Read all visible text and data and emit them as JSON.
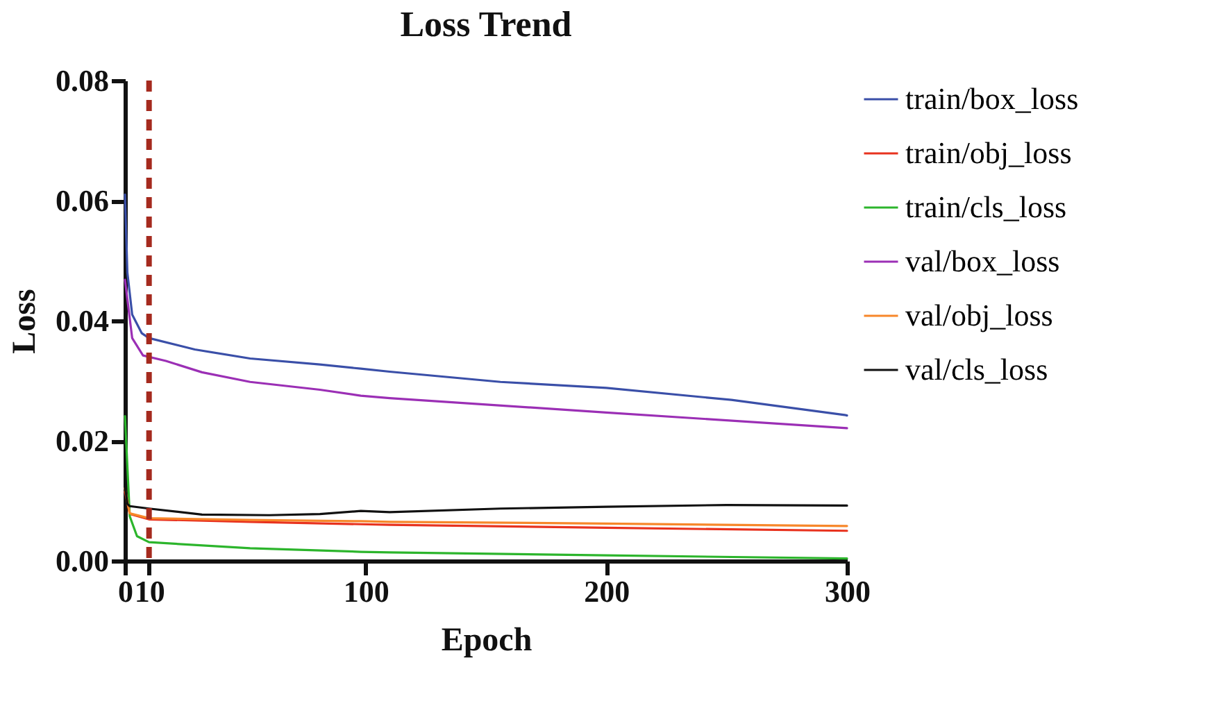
{
  "chart_data": {
    "type": "line",
    "title": "Loss Trend",
    "xlabel": "Epoch",
    "ylabel": "Loss",
    "xlim": [
      0,
      300
    ],
    "xticks": [
      0,
      10,
      100,
      200,
      300
    ],
    "ylim": [
      0,
      0.08
    ],
    "yticks": [
      {
        "value": 0,
        "label": "0.00"
      },
      {
        "value": 0.02,
        "label": "0.02"
      },
      {
        "value": 0.04,
        "label": "0.04"
      },
      {
        "value": 0.06,
        "label": "0.06"
      },
      {
        "value": 0.08,
        "label": "0.08"
      }
    ],
    "grid": false,
    "legend": "right",
    "marker": "none",
    "line_style": "solid",
    "ref_lines": [
      {
        "axis": "x",
        "value": 10,
        "color": "#a52a1e",
        "line_style": "dashed"
      }
    ],
    "series": [
      {
        "name": "train/box_loss",
        "color": "#3a4fa8",
        "x": [
          0,
          1,
          3,
          7,
          10,
          29,
          52,
          81,
          98,
          110,
          156,
          200,
          252,
          299,
          300
        ],
        "values": [
          0.061,
          0.048,
          0.041,
          0.0379,
          0.0371,
          0.0352,
          0.0337,
          0.0327,
          0.032,
          0.0315,
          0.0298,
          0.0288,
          0.0268,
          0.0243,
          0.0242
        ]
      },
      {
        "name": "train/obj_loss",
        "color": "#e8321e",
        "x": [
          0,
          2,
          10,
          52,
          98,
          110,
          200,
          300
        ],
        "values": [
          0.0115,
          0.0078,
          0.0069,
          0.0065,
          0.0061,
          0.006,
          0.0055,
          0.005
        ]
      },
      {
        "name": "train/cls_loss",
        "color": "#2cb52c",
        "x": [
          0,
          2,
          5,
          10,
          52,
          98,
          110,
          200,
          300
        ],
        "values": [
          0.0241,
          0.0074,
          0.0041,
          0.0031,
          0.0021,
          0.0015,
          0.0014,
          0.0009,
          0.0004
        ]
      },
      {
        "name": "val/box_loss",
        "color": "#9b2fb5",
        "x": [
          0,
          3,
          7.5,
          17,
          32,
          52,
          81,
          98,
          110,
          200,
          300
        ],
        "values": [
          0.0468,
          0.0371,
          0.0342,
          0.0333,
          0.0314,
          0.0298,
          0.0285,
          0.0275,
          0.0271,
          0.0247,
          0.0221
        ]
      },
      {
        "name": "val/obj_loss",
        "color": "#f7872a",
        "x": [
          0,
          2,
          10,
          52,
          98,
          110,
          200,
          300
        ],
        "values": [
          0.0121,
          0.0079,
          0.0071,
          0.0068,
          0.0066,
          0.0065,
          0.0062,
          0.0058
        ]
      },
      {
        "name": "val/cls_loss",
        "color": "#111111",
        "x": [
          0,
          1,
          2,
          10,
          32,
          60,
          81,
          98,
          110,
          156,
          200,
          250,
          300
        ],
        "values": [
          0.0125,
          0.0095,
          0.0091,
          0.0087,
          0.0077,
          0.0076,
          0.0078,
          0.0083,
          0.0081,
          0.0087,
          0.009,
          0.0093,
          0.0092
        ]
      }
    ]
  }
}
